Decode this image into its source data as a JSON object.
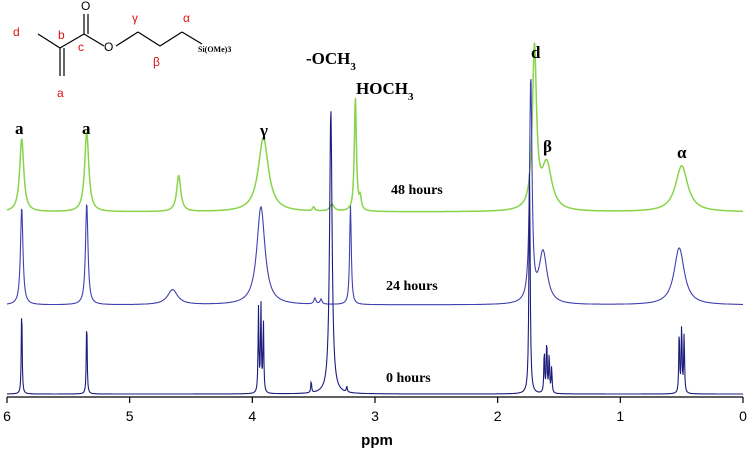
{
  "chart_data": {
    "type": "line",
    "xlabel": "ppm",
    "xlim": [
      6,
      0
    ],
    "x_reversed": true,
    "x_ticks": [
      "6",
      "5",
      "4",
      "3",
      "2",
      "1",
      "0"
    ],
    "series": [
      {
        "name": "48 hours",
        "color": "#88d44a",
        "peaks": [
          {
            "x": 5.88,
            "h": 0.73,
            "w": 0.02
          },
          {
            "x": 5.35,
            "h": 0.8,
            "w": 0.02
          },
          {
            "x": 4.6,
            "h": 0.36,
            "w": 0.02
          },
          {
            "x": 3.91,
            "h": 0.74,
            "w": 0.05
          },
          {
            "x": 3.5,
            "h": 0.04,
            "w": 0.01
          },
          {
            "x": 3.35,
            "h": 0.07,
            "w": 0.02
          },
          {
            "x": 3.16,
            "h": 1.14,
            "w": 0.01
          },
          {
            "x": 3.12,
            "h": 0.12,
            "w": 0.01
          },
          {
            "x": 1.7,
            "h": 1.6,
            "w": 0.02
          },
          {
            "x": 1.6,
            "h": 0.46,
            "w": 0.05
          },
          {
            "x": 0.5,
            "h": 0.46,
            "w": 0.06
          }
        ]
      },
      {
        "name": "24 hours",
        "color": "#4040b0",
        "peaks": [
          {
            "x": 5.88,
            "h": 0.98,
            "w": 0.012
          },
          {
            "x": 5.35,
            "h": 1.02,
            "w": 0.012
          },
          {
            "x": 4.65,
            "h": 0.15,
            "w": 0.05
          },
          {
            "x": 3.93,
            "h": 0.98,
            "w": 0.04
          },
          {
            "x": 3.49,
            "h": 0.06,
            "w": 0.01
          },
          {
            "x": 3.44,
            "h": 0.05,
            "w": 0.01
          },
          {
            "x": 3.2,
            "h": 0.99,
            "w": 0.008
          },
          {
            "x": 1.73,
            "h": 2.23,
            "w": 0.012
          },
          {
            "x": 1.63,
            "h": 0.52,
            "w": 0.04
          },
          {
            "x": 0.52,
            "h": 0.57,
            "w": 0.05
          }
        ]
      },
      {
        "name": "0 hours",
        "color": "#1c1c7c",
        "peaks": [
          {
            "x": 5.88,
            "h": 0.91,
            "w": 0.004
          },
          {
            "x": 5.35,
            "h": 0.77,
            "w": 0.004
          },
          {
            "x": 3.95,
            "h": 0.85,
            "w": 0.004
          },
          {
            "x": 3.93,
            "h": 0.89,
            "w": 0.004
          },
          {
            "x": 3.91,
            "h": 0.74,
            "w": 0.004
          },
          {
            "x": 3.52,
            "h": 0.12,
            "w": 0.004
          },
          {
            "x": 3.36,
            "h": 2.86,
            "w": 0.012
          },
          {
            "x": 3.23,
            "h": 0.06,
            "w": 0.004
          },
          {
            "x": 1.74,
            "h": 2.22,
            "w": 0.006
          },
          {
            "x": 1.62,
            "h": 0.44,
            "w": 0.004
          },
          {
            "x": 1.6,
            "h": 0.55,
            "w": 0.004
          },
          {
            "x": 1.58,
            "h": 0.4,
            "w": 0.004
          },
          {
            "x": 1.56,
            "h": 0.27,
            "w": 0.004
          },
          {
            "x": 0.52,
            "h": 0.65,
            "w": 0.004
          },
          {
            "x": 0.5,
            "h": 0.7,
            "w": 0.004
          },
          {
            "x": 0.48,
            "h": 0.6,
            "w": 0.004
          }
        ]
      }
    ],
    "annotations": [
      {
        "text": "a",
        "x": 5.88
      },
      {
        "text": "a",
        "x": 5.35
      },
      {
        "text": "γ",
        "x": 3.93
      },
      {
        "text": "-OCH3",
        "x": 3.33
      },
      {
        "text": "HOCH3",
        "x": 3.0
      },
      {
        "text": "d",
        "x": 1.7
      },
      {
        "text": "β",
        "x": 1.57
      },
      {
        "text": "α",
        "x": 0.51
      }
    ]
  },
  "molecule": {
    "labels": {
      "d": "d",
      "b": "b",
      "c": "c",
      "a": "a",
      "gamma": "γ",
      "beta": "β",
      "alpha": "α",
      "oxygen_top": "O",
      "oxygen_ester": "O",
      "silane": "Si(OMe)3"
    }
  }
}
